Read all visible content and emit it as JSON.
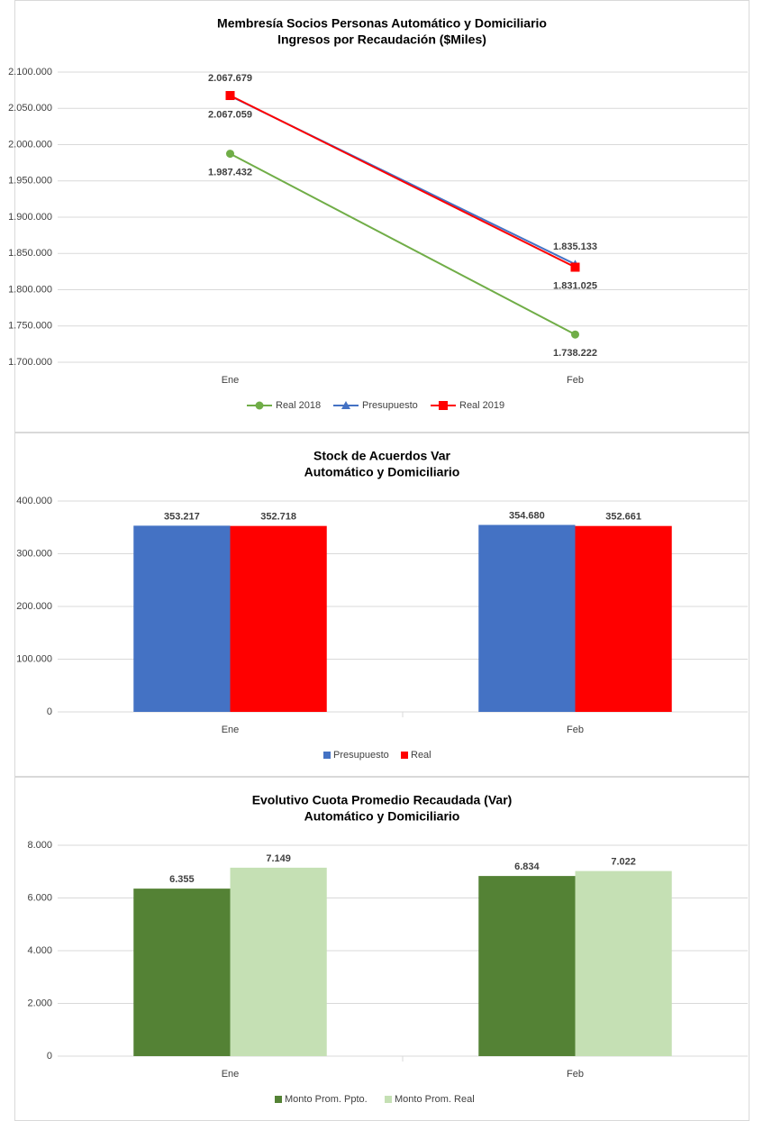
{
  "chart_data": [
    {
      "type": "line",
      "title": "Membresía Socios Personas Automático y Domiciliario",
      "subtitle": "Ingresos por Recaudación ($Miles)",
      "categories": [
        "Ene",
        "Feb"
      ],
      "series": [
        {
          "name": "Real 2018",
          "color": "#70ad47",
          "marker": "circle",
          "values": [
            1987432,
            1738222
          ],
          "value_labels": [
            "1.987.432",
            "1.738.222"
          ]
        },
        {
          "name": "Presupuesto",
          "color": "#4472c4",
          "marker": "triangle",
          "values": [
            2067059,
            1835133
          ],
          "value_labels": [
            "2.067.059",
            "1.835.133"
          ]
        },
        {
          "name": "Real 2019",
          "color": "#ff0000",
          "marker": "square",
          "values": [
            2067679,
            1831025
          ],
          "value_labels": [
            "2.067.679",
            "1.831.025"
          ]
        }
      ],
      "ylim": [
        1700000,
        2100000
      ],
      "yticks": [
        {
          "value": 1700000,
          "label": "1.700.000"
        },
        {
          "value": 1750000,
          "label": "1.750.000"
        },
        {
          "value": 1800000,
          "label": "1.800.000"
        },
        {
          "value": 1850000,
          "label": "1.850.000"
        },
        {
          "value": 1900000,
          "label": "1.900.000"
        },
        {
          "value": 1950000,
          "label": "1.950.000"
        },
        {
          "value": 2000000,
          "label": "2.000.000"
        },
        {
          "value": 2050000,
          "label": "2.050.000"
        },
        {
          "value": 2100000,
          "label": "2.100.000"
        }
      ],
      "grid": true,
      "legend": "bottom"
    },
    {
      "type": "bar",
      "title": "Stock de Acuerdos Var",
      "subtitle": "Automático y Domiciliario",
      "categories": [
        "Ene",
        "Feb"
      ],
      "series": [
        {
          "name": "Presupuesto",
          "color": "#4472c4",
          "values": [
            353217,
            354680
          ],
          "value_labels": [
            "353.217",
            "354.680"
          ]
        },
        {
          "name": "Real",
          "color": "#ff0000",
          "values": [
            352718,
            352661
          ],
          "value_labels": [
            "352.718",
            "352.661"
          ]
        }
      ],
      "ylim": [
        0,
        400000
      ],
      "yticks": [
        0,
        {
          "value": 100000,
          "label": "100.000"
        },
        {
          "value": 200000,
          "label": "200.000"
        },
        {
          "value": 300000,
          "label": "300.000"
        },
        {
          "value": 400000,
          "label": "400.000"
        }
      ],
      "grid": true,
      "legend": "bottom"
    },
    {
      "type": "bar",
      "title": "Evolutivo Cuota Promedio Recaudada (Var)",
      "subtitle": "Automático y Domiciliario",
      "categories": [
        "Ene",
        "Feb"
      ],
      "series": [
        {
          "name": "Monto Prom. Ppto.",
          "color": "#548235",
          "values": [
            6355,
            6834
          ],
          "value_labels": [
            "6.355",
            "6.834"
          ]
        },
        {
          "name": "Monto Prom. Real",
          "color": "#c5e0b4",
          "values": [
            7149,
            7022
          ],
          "value_labels": [
            "7.149",
            "7.022"
          ]
        }
      ],
      "ylim": [
        0,
        8000
      ],
      "yticks": [
        0,
        {
          "value": 2000,
          "label": "2.000"
        },
        {
          "value": 4000,
          "label": "4.000"
        },
        {
          "value": 6000,
          "label": "6.000"
        },
        {
          "value": 8000,
          "label": "8.000"
        }
      ],
      "grid": true,
      "legend": "bottom"
    }
  ]
}
